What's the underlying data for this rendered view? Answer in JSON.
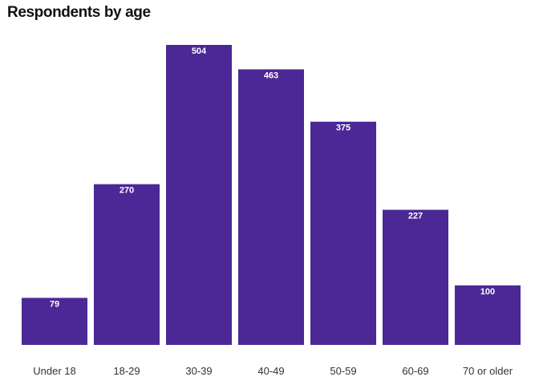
{
  "chart_data": {
    "type": "bar",
    "title": "Respondents by age",
    "categories": [
      "Under 18",
      "18-29",
      "30-39",
      "40-49",
      "50-59",
      "60-69",
      "70 or older"
    ],
    "values": [
      79,
      270,
      504,
      463,
      375,
      227,
      100
    ],
    "xlabel": "",
    "ylabel": "",
    "ylim": [
      0,
      504
    ],
    "grid": false,
    "legend": "none",
    "bar_color": "#4b2896",
    "data_labels": "inside-top"
  }
}
